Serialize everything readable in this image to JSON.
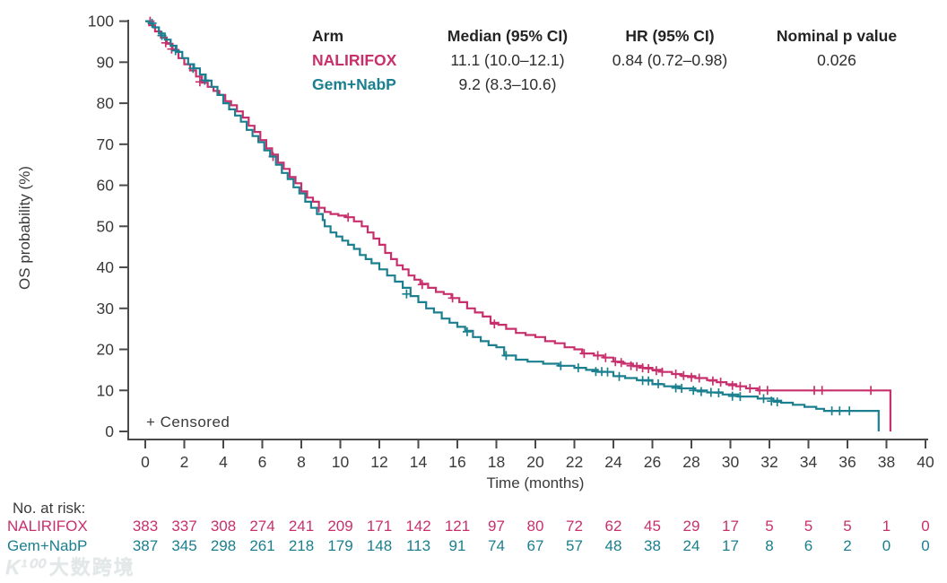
{
  "colors": {
    "nalirifox": "#C7306C",
    "gem_nabp": "#1A7F8E",
    "axis": "#4a4a4a",
    "tick_text": "#3a3a3a",
    "watermark": "#e2e7e7"
  },
  "ylabel": "OS probability (%)",
  "xlabel": "Time (months)",
  "censored_label": "+ Censored",
  "legend_table": {
    "headers": [
      "Arm",
      "Median (95% CI)",
      "HR (95% CI)",
      "Nominal p value"
    ],
    "rows": [
      {
        "arm": "NALIRIFOX",
        "median": "11.1 (10.0–12.1)",
        "hr": "0.84 (0.72–0.98)",
        "p": "0.026"
      },
      {
        "arm": "Gem+NabP",
        "median": "9.2 (8.3–10.6)",
        "hr": "",
        "p": ""
      }
    ]
  },
  "risk_section": {
    "title": "No. at risk:"
  },
  "watermark": {
    "logo": "K¹⁰⁰",
    "text": "大数跨境"
  },
  "chart_data": {
    "type": "line",
    "subtype": "kaplan-meier-step",
    "title": "",
    "xlabel": "Time (months)",
    "ylabel": "OS probability (%)",
    "xlim": [
      0,
      40
    ],
    "ylim": [
      0,
      100
    ],
    "x_ticks": [
      0,
      2,
      4,
      6,
      8,
      10,
      12,
      14,
      16,
      18,
      20,
      22,
      24,
      26,
      28,
      30,
      32,
      34,
      36,
      38,
      40
    ],
    "y_ticks": [
      0,
      10,
      20,
      30,
      40,
      50,
      60,
      70,
      80,
      90,
      100
    ],
    "grid": false,
    "legend_position": "top-inside",
    "series": [
      {
        "name": "NALIRIFOX",
        "color": "#C7306C",
        "median_os_months": 11.1,
        "median_ci": [
          10.0,
          12.1
        ],
        "hr": 0.84,
        "hr_ci": [
          0.72,
          0.98
        ],
        "p_value": 0.026,
        "points": [
          [
            0,
            100
          ],
          [
            0.2,
            99
          ],
          [
            0.5,
            97.5
          ],
          [
            0.8,
            96
          ],
          [
            1.1,
            94.5
          ],
          [
            1.4,
            93
          ],
          [
            1.7,
            91
          ],
          [
            2.0,
            89.5
          ],
          [
            2.3,
            88
          ],
          [
            2.6,
            86.5
          ],
          [
            2.9,
            85
          ],
          [
            3.2,
            84
          ],
          [
            3.5,
            83
          ],
          [
            3.8,
            82
          ],
          [
            4.1,
            80.5
          ],
          [
            4.4,
            79.5
          ],
          [
            4.7,
            78
          ],
          [
            5.0,
            76.5
          ],
          [
            5.3,
            74.5
          ],
          [
            5.6,
            73
          ],
          [
            5.9,
            71
          ],
          [
            6.2,
            69
          ],
          [
            6.5,
            67.5
          ],
          [
            6.8,
            65.5
          ],
          [
            7.1,
            64
          ],
          [
            7.4,
            62
          ],
          [
            7.7,
            60.5
          ],
          [
            8.0,
            58.5
          ],
          [
            8.3,
            57
          ],
          [
            8.6,
            56
          ],
          [
            8.9,
            54.5
          ],
          [
            9.2,
            53.5
          ],
          [
            9.5,
            53
          ],
          [
            9.9,
            52.6
          ],
          [
            10.3,
            52.2
          ],
          [
            10.7,
            51.2
          ],
          [
            11.1,
            50
          ],
          [
            11.4,
            48.5
          ],
          [
            11.7,
            47
          ],
          [
            12.0,
            45.5
          ],
          [
            12.3,
            43.5
          ],
          [
            12.6,
            42
          ],
          [
            12.9,
            40.5
          ],
          [
            13.2,
            39.5
          ],
          [
            13.5,
            38
          ],
          [
            13.8,
            37
          ],
          [
            14.1,
            36
          ],
          [
            14.5,
            35
          ],
          [
            14.9,
            34
          ],
          [
            15.3,
            33.5
          ],
          [
            15.7,
            32.5
          ],
          [
            16.1,
            31.5
          ],
          [
            16.5,
            30
          ],
          [
            16.9,
            29
          ],
          [
            17.3,
            28
          ],
          [
            17.7,
            26.5
          ],
          [
            18.1,
            26
          ],
          [
            18.5,
            25
          ],
          [
            19.0,
            24
          ],
          [
            19.5,
            23.5
          ],
          [
            20.0,
            23
          ],
          [
            20.5,
            22
          ],
          [
            21.0,
            21.5
          ],
          [
            21.5,
            20.5
          ],
          [
            22.0,
            20
          ],
          [
            22.4,
            19
          ],
          [
            23.0,
            18.5
          ],
          [
            23.5,
            18
          ],
          [
            24.0,
            17
          ],
          [
            24.5,
            16.5
          ],
          [
            25.0,
            16
          ],
          [
            25.5,
            15.5
          ],
          [
            26.0,
            15
          ],
          [
            26.5,
            14.5
          ],
          [
            27.0,
            14
          ],
          [
            27.5,
            13.5
          ],
          [
            28.2,
            13
          ],
          [
            28.8,
            12.5
          ],
          [
            29.3,
            12
          ],
          [
            29.8,
            11.5
          ],
          [
            30.3,
            11
          ],
          [
            30.8,
            10.5
          ],
          [
            31.4,
            10
          ],
          [
            38.2,
            10
          ],
          [
            38.2,
            0
          ]
        ],
        "censor_marks": [
          [
            0.25,
            100
          ],
          [
            1.05,
            94.7
          ],
          [
            1.35,
            93.2
          ],
          [
            2.8,
            85.2
          ],
          [
            6.55,
            67
          ],
          [
            8.9,
            54.5
          ],
          [
            10.4,
            52.2
          ],
          [
            14.2,
            35.8
          ],
          [
            15.75,
            32.5
          ],
          [
            17.9,
            26.2
          ],
          [
            22.5,
            19
          ],
          [
            23.2,
            18.5
          ],
          [
            23.6,
            18
          ],
          [
            24.1,
            17
          ],
          [
            24.4,
            16.8
          ],
          [
            24.9,
            16
          ],
          [
            25.2,
            15.8
          ],
          [
            25.5,
            15.5
          ],
          [
            25.8,
            15.3
          ],
          [
            26.2,
            14.8
          ],
          [
            26.5,
            14.5
          ],
          [
            27.2,
            14
          ],
          [
            27.6,
            13.6
          ],
          [
            28.0,
            13.2
          ],
          [
            28.4,
            13
          ],
          [
            29.1,
            12.3
          ],
          [
            29.5,
            12
          ],
          [
            30.1,
            11.2
          ],
          [
            30.5,
            11
          ],
          [
            31.0,
            10.5
          ],
          [
            31.5,
            10
          ],
          [
            31.9,
            10
          ],
          [
            34.3,
            10
          ],
          [
            34.7,
            10
          ],
          [
            37.2,
            10
          ]
        ]
      },
      {
        "name": "Gem+NabP",
        "color": "#1A7F8E",
        "median_os_months": 9.2,
        "median_ci": [
          8.3,
          10.6
        ],
        "points": [
          [
            0,
            100
          ],
          [
            0.2,
            99.5
          ],
          [
            0.4,
            98.5
          ],
          [
            0.7,
            97
          ],
          [
            1.0,
            95.5
          ],
          [
            1.3,
            94
          ],
          [
            1.6,
            92.5
          ],
          [
            1.9,
            91
          ],
          [
            2.2,
            89.5
          ],
          [
            2.5,
            88.5
          ],
          [
            2.8,
            87
          ],
          [
            3.1,
            85.5
          ],
          [
            3.4,
            84
          ],
          [
            3.7,
            82
          ],
          [
            4.0,
            80
          ],
          [
            4.3,
            78.5
          ],
          [
            4.6,
            77
          ],
          [
            4.9,
            75.5
          ],
          [
            5.2,
            73.5
          ],
          [
            5.5,
            72
          ],
          [
            5.8,
            70.5
          ],
          [
            6.1,
            68.5
          ],
          [
            6.4,
            67
          ],
          [
            6.7,
            65
          ],
          [
            7.0,
            63
          ],
          [
            7.3,
            61.5
          ],
          [
            7.6,
            59.5
          ],
          [
            7.9,
            58
          ],
          [
            8.2,
            56
          ],
          [
            8.5,
            54.5
          ],
          [
            8.8,
            53
          ],
          [
            9.1,
            51.5
          ],
          [
            9.2,
            50
          ],
          [
            9.5,
            48.5
          ],
          [
            9.8,
            47.5
          ],
          [
            10.1,
            46.5
          ],
          [
            10.4,
            45.5
          ],
          [
            10.7,
            44.5
          ],
          [
            11.0,
            43
          ],
          [
            11.3,
            42
          ],
          [
            11.6,
            41
          ],
          [
            12.0,
            39.5
          ],
          [
            12.4,
            38
          ],
          [
            12.8,
            36.5
          ],
          [
            13.2,
            35
          ],
          [
            13.6,
            33
          ],
          [
            14.0,
            31.5
          ],
          [
            14.4,
            30
          ],
          [
            14.8,
            29
          ],
          [
            15.2,
            27.5
          ],
          [
            15.6,
            26.5
          ],
          [
            16.0,
            25.5
          ],
          [
            16.4,
            24.5
          ],
          [
            16.8,
            23
          ],
          [
            17.2,
            22
          ],
          [
            17.6,
            21
          ],
          [
            18.0,
            20.5
          ],
          [
            18.4,
            18.5
          ],
          [
            19.0,
            17.5
          ],
          [
            19.6,
            17
          ],
          [
            20.4,
            16.5
          ],
          [
            21.2,
            16
          ],
          [
            22.0,
            15.5
          ],
          [
            22.6,
            15
          ],
          [
            23.2,
            14.5
          ],
          [
            24.0,
            13.5
          ],
          [
            24.6,
            13
          ],
          [
            25.2,
            12.5
          ],
          [
            26.0,
            11.5
          ],
          [
            26.6,
            11
          ],
          [
            27.4,
            10.5
          ],
          [
            28.2,
            10
          ],
          [
            28.8,
            9.5
          ],
          [
            29.6,
            9
          ],
          [
            30.4,
            8.5
          ],
          [
            31.4,
            8
          ],
          [
            32.2,
            7.5
          ],
          [
            32.6,
            7
          ],
          [
            33.2,
            6.5
          ],
          [
            33.8,
            6
          ],
          [
            34.4,
            5.5
          ],
          [
            34.8,
            5
          ],
          [
            37.6,
            5
          ],
          [
            37.6,
            0
          ]
        ],
        "censor_marks": [
          [
            0.35,
            99.5
          ],
          [
            0.85,
            96.5
          ],
          [
            1.55,
            92.8
          ],
          [
            2.45,
            88.5
          ],
          [
            3.05,
            85.6
          ],
          [
            13.4,
            33.5
          ],
          [
            16.5,
            24.3
          ],
          [
            18.5,
            18.5
          ],
          [
            21.3,
            16
          ],
          [
            22.2,
            15.5
          ],
          [
            23.1,
            14.6
          ],
          [
            23.4,
            14.6
          ],
          [
            23.7,
            14.5
          ],
          [
            24.3,
            13.4
          ],
          [
            25.5,
            12.4
          ],
          [
            25.8,
            12.3
          ],
          [
            26.3,
            11.6
          ],
          [
            27.2,
            10.6
          ],
          [
            27.5,
            10.5
          ],
          [
            28.1,
            10
          ],
          [
            28.5,
            9.7
          ],
          [
            29.0,
            9.5
          ],
          [
            29.4,
            9.4
          ],
          [
            30.1,
            8.6
          ],
          [
            30.5,
            8.5
          ],
          [
            31.7,
            8
          ],
          [
            32.1,
            7.4
          ],
          [
            32.4,
            7.2
          ],
          [
            35.2,
            5
          ],
          [
            35.6,
            5
          ],
          [
            36.1,
            5
          ]
        ]
      }
    ],
    "risk_table": {
      "times": [
        0,
        2,
        4,
        6,
        8,
        10,
        12,
        14,
        16,
        18,
        20,
        22,
        24,
        26,
        28,
        30,
        32,
        34,
        36,
        38,
        40
      ],
      "rows": [
        {
          "name": "NALIRIFOX",
          "color": "#C7306C",
          "counts": [
            383,
            337,
            308,
            274,
            241,
            209,
            171,
            142,
            121,
            97,
            80,
            72,
            62,
            45,
            29,
            17,
            5,
            5,
            5,
            1,
            0
          ]
        },
        {
          "name": "Gem+NabP",
          "color": "#1A7F8E",
          "counts": [
            387,
            345,
            298,
            261,
            218,
            179,
            148,
            113,
            91,
            74,
            67,
            57,
            48,
            38,
            24,
            17,
            8,
            6,
            2,
            0,
            0
          ]
        }
      ]
    }
  }
}
